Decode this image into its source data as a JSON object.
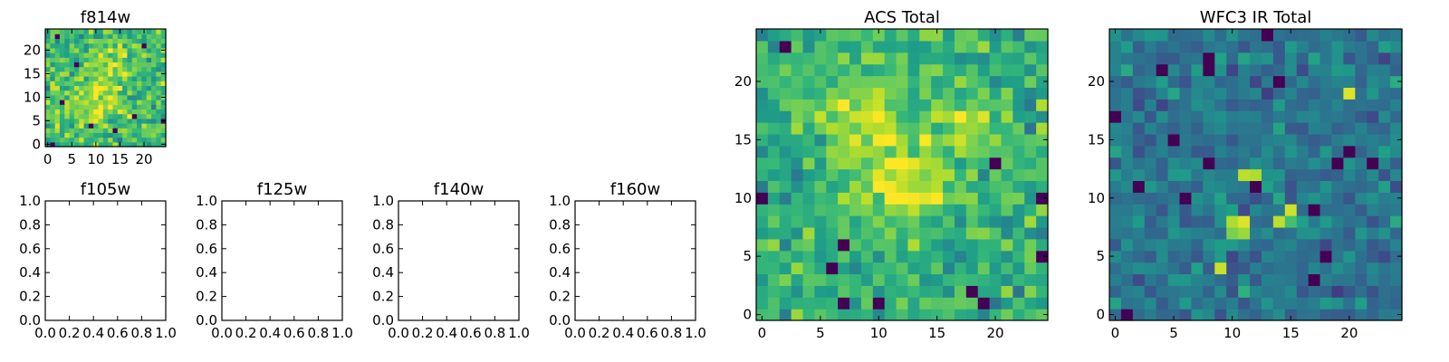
{
  "figure": {
    "panels": {
      "f814w": {
        "title": "f814w"
      },
      "f105w": {
        "title": "f105w"
      },
      "f125w": {
        "title": "f125w"
      },
      "f140w": {
        "title": "f140w"
      },
      "f160w": {
        "title": "f160w"
      },
      "acs": {
        "title": "ACS Total"
      },
      "wfc3": {
        "title": "WFC3 IR Total"
      }
    }
  },
  "chart_data": [
    {
      "id": "f814w",
      "type": "heatmap",
      "title": "f814w",
      "colormap": "viridis",
      "grid_size": [
        25,
        25
      ],
      "xlim": [
        -0.5,
        24.5
      ],
      "ylim": [
        -0.5,
        24.5
      ],
      "xticks": [
        "0",
        "5",
        "10",
        "15",
        "20"
      ],
      "yticks": [
        "0",
        "5",
        "10",
        "15",
        "20"
      ],
      "seed": 11,
      "base": 0.68,
      "spread": 0.18,
      "hotspots": [
        [
          10,
          10,
          0.2,
          4
        ],
        [
          13,
          17,
          0.15,
          3
        ]
      ],
      "dark_pixels": [
        [
          1,
          0
        ],
        [
          18,
          6
        ],
        [
          24,
          5
        ],
        [
          9,
          4
        ],
        [
          6,
          17
        ],
        [
          3,
          9
        ],
        [
          20,
          21
        ],
        [
          14,
          3
        ],
        [
          2,
          23
        ]
      ]
    },
    {
      "id": "f105w",
      "type": "empty",
      "title": "f105w",
      "xlim": [
        0,
        1
      ],
      "ylim": [
        0,
        1
      ],
      "xticks": [
        "0.0",
        "0.2",
        "0.4",
        "0.6",
        "0.8",
        "1.0"
      ],
      "yticks": [
        "0.0",
        "0.2",
        "0.4",
        "0.6",
        "0.8",
        "1.0"
      ]
    },
    {
      "id": "f125w",
      "type": "empty",
      "title": "f125w",
      "xlim": [
        0,
        1
      ],
      "ylim": [
        0,
        1
      ],
      "xticks": [
        "0.0",
        "0.2",
        "0.4",
        "0.6",
        "0.8",
        "1.0"
      ],
      "yticks": [
        "0.0",
        "0.2",
        "0.4",
        "0.6",
        "0.8",
        "1.0"
      ]
    },
    {
      "id": "f140w",
      "type": "empty",
      "title": "f140w",
      "xlim": [
        0,
        1
      ],
      "ylim": [
        0,
        1
      ],
      "xticks": [
        "0.0",
        "0.2",
        "0.4",
        "0.6",
        "0.8",
        "1.0"
      ],
      "yticks": [
        "0.0",
        "0.2",
        "0.4",
        "0.6",
        "0.8",
        "1.0"
      ]
    },
    {
      "id": "f160w",
      "type": "empty",
      "title": "f160w",
      "xlim": [
        0,
        1
      ],
      "ylim": [
        0,
        1
      ],
      "xticks": [
        "0.0",
        "0.2",
        "0.4",
        "0.6",
        "0.8",
        "1.0"
      ],
      "yticks": [
        "0.0",
        "0.2",
        "0.4",
        "0.6",
        "0.8",
        "1.0"
      ]
    },
    {
      "id": "acs",
      "type": "heatmap",
      "title": "ACS Total",
      "colormap": "viridis",
      "grid_size": [
        25,
        25
      ],
      "xlim": [
        -0.5,
        24.5
      ],
      "ylim": [
        -0.5,
        24.5
      ],
      "xticks": [
        "0",
        "5",
        "10",
        "15",
        "20"
      ],
      "yticks": [
        "0",
        "5",
        "10",
        "15",
        "20"
      ],
      "seed": 7,
      "base": 0.64,
      "spread": 0.16,
      "hotspots": [
        [
          8,
          18,
          0.2,
          3
        ],
        [
          13,
          11,
          0.22,
          3
        ],
        [
          18,
          16,
          0.14,
          2
        ],
        [
          10,
          14,
          0.12,
          3
        ]
      ],
      "dark_pixels": [
        [
          2,
          23
        ],
        [
          7,
          6
        ],
        [
          10,
          1
        ],
        [
          7,
          1
        ],
        [
          19,
          1
        ],
        [
          18,
          2
        ],
        [
          20,
          13
        ],
        [
          24,
          10
        ],
        [
          24,
          5
        ],
        [
          6,
          4
        ],
        [
          0,
          10
        ]
      ]
    },
    {
      "id": "wfc3",
      "type": "heatmap",
      "title": "WFC3 IR Total",
      "colormap": "viridis",
      "grid_size": [
        25,
        25
      ],
      "xlim": [
        -0.5,
        24.5
      ],
      "ylim": [
        -0.5,
        24.5
      ],
      "xticks": [
        "0",
        "5",
        "10",
        "15",
        "20"
      ],
      "yticks": [
        "0",
        "5",
        "10",
        "15",
        "20"
      ],
      "seed": 23,
      "base": 0.4,
      "spread": 0.13,
      "bright_pixels": [
        [
          20,
          19,
          0.95
        ],
        [
          11,
          12,
          0.9
        ],
        [
          12,
          12,
          0.88
        ],
        [
          10,
          8,
          0.88
        ],
        [
          11,
          8,
          0.95
        ],
        [
          10,
          7,
          0.8
        ],
        [
          11,
          7,
          0.85
        ],
        [
          14,
          8,
          0.9
        ],
        [
          15,
          9,
          0.93
        ],
        [
          9,
          4,
          0.92
        ],
        [
          15,
          8,
          0.7
        ]
      ],
      "dark_pixels": [
        [
          8,
          22
        ],
        [
          8,
          21
        ],
        [
          1,
          0
        ],
        [
          0,
          17
        ],
        [
          14,
          20
        ],
        [
          5,
          15
        ],
        [
          8,
          13
        ],
        [
          20,
          14
        ],
        [
          19,
          13
        ],
        [
          12,
          11
        ],
        [
          6,
          10
        ],
        [
          18,
          5
        ],
        [
          17,
          9
        ],
        [
          22,
          13
        ],
        [
          4,
          21
        ],
        [
          13,
          24
        ],
        [
          17,
          3
        ],
        [
          2,
          11
        ]
      ]
    }
  ]
}
